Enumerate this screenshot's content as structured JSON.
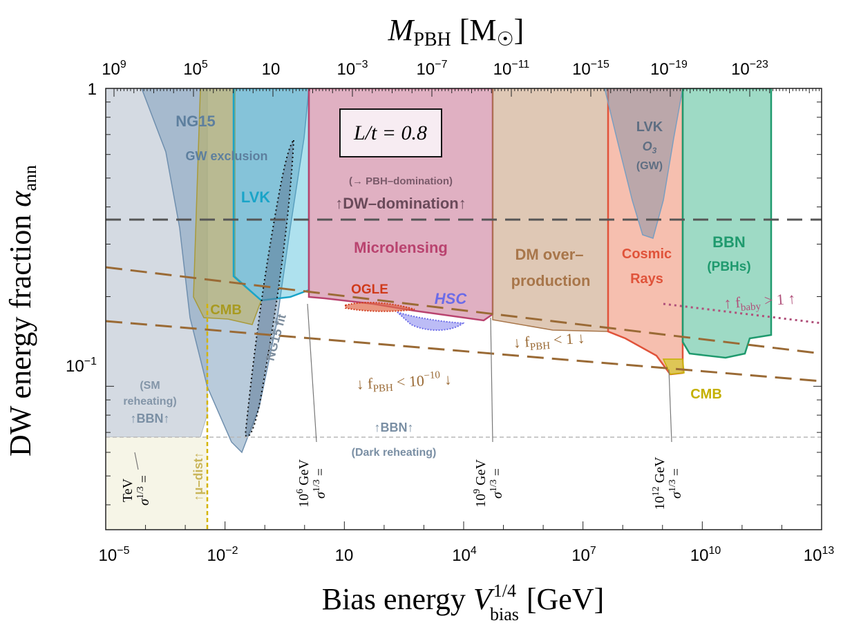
{
  "chart_data": {
    "type": "area",
    "title": "",
    "top_axis": {
      "label": "M_PBH [M_⊙]",
      "label_main": "M",
      "label_sub": "PBH",
      "label_unit": "[M",
      "label_unit_end": "]",
      "ticks": [
        {
          "base": "10",
          "exp": "9"
        },
        {
          "base": "10",
          "exp": "5"
        },
        {
          "base": "10",
          "exp": ""
        },
        {
          "base": "10",
          "exp": "−3"
        },
        {
          "base": "10",
          "exp": "−7"
        },
        {
          "base": "10",
          "exp": "−11"
        },
        {
          "base": "10",
          "exp": "−15"
        },
        {
          "base": "10",
          "exp": "−19"
        },
        {
          "base": "10",
          "exp": "−23"
        }
      ]
    },
    "xlabel": "Bias energy V_bias^{1/4} [GeV]",
    "xlabel_parts": {
      "main": "Bias energy ",
      "var": "V",
      "sub": "bias",
      "sup": "1/4",
      "unit": " [GeV]"
    },
    "ylabel": "DW energy fraction α_ann",
    "ylabel_parts": {
      "main": "DW energy fraction ",
      "var": "α",
      "sub": "ann"
    },
    "x_scale": "log",
    "y_scale": "log",
    "xlim": [
      1e-05,
      10000000000000.0
    ],
    "ylim": [
      0.033,
      1
    ],
    "x_ticks": [
      {
        "base": "10",
        "exp": "−5"
      },
      {
        "base": "10",
        "exp": "−2"
      },
      {
        "base": "10",
        "exp": ""
      },
      {
        "base": "10",
        "exp": "4"
      },
      {
        "base": "10",
        "exp": "7"
      },
      {
        "base": "10",
        "exp": "10"
      },
      {
        "base": "10",
        "exp": "13"
      }
    ],
    "y_ticks": [
      {
        "text": "1"
      },
      {
        "base": "10",
        "exp": "−1"
      }
    ],
    "colors": {
      "sm_reheating": "#8fa2b4",
      "mu_dist": "#e0e0b0",
      "ng15": "#6f95b6",
      "cmb": "#b2a23a",
      "lvk": "#1aa4c8",
      "microlensing": "#c0507a",
      "ogle": "#d03a1a",
      "hsc": "#6b6be8",
      "dm_overproduction": "#a8764a",
      "cosmic_rays": "#e0533a",
      "bbn": "#1f9a6e",
      "dw_domination_line": "#555555",
      "fpbh_lines": "#9a6a35",
      "fbaby_line": "#b0507a"
    },
    "regions": [
      {
        "name": "SM reheating BBN",
        "x_range": [
          1e-05,
          0.008
        ],
        "y_range": [
          0.057,
          1
        ]
      },
      {
        "name": "μ-dist",
        "x_range": [
          1e-05,
          0.006
        ],
        "y_range": [
          0.033,
          0.057
        ]
      },
      {
        "name": "NG15 GW exclusion",
        "x_range": [
          0.0002,
          3
        ]
      },
      {
        "name": "CMB",
        "x_range": [
          0.003,
          0.1
        ],
        "y_range": [
          0.12,
          0.2
        ]
      },
      {
        "name": "LVK",
        "x_range": [
          0.05,
          3
        ],
        "y_range": [
          0.17,
          1
        ]
      },
      {
        "name": "Microlensing",
        "x_range": [
          3,
          50000
        ],
        "y_range": [
          0.14,
          1
        ]
      },
      {
        "name": "OGLE",
        "x_range": [
          15,
          1000
        ]
      },
      {
        "name": "HSC",
        "x_range": [
          1000,
          50000
        ]
      },
      {
        "name": "DM over-production",
        "x_range": [
          50000,
          1000000000.0
        ],
        "y_range": [
          0.12,
          1
        ]
      },
      {
        "name": "Cosmic Rays",
        "x_range": [
          1000000000.0,
          80000000000.0
        ],
        "y_range": [
          0.095,
          1
        ]
      },
      {
        "name": "LVK O3 (GW)",
        "x_range": [
          200000000.0,
          60000000000.0
        ],
        "y_range": [
          0.3,
          1
        ]
      },
      {
        "name": "BBN (PBHs)",
        "x_range": [
          80000000000.0,
          800000000000.0
        ],
        "y_range": [
          0.1,
          1
        ]
      }
    ],
    "lines": [
      {
        "name": "DW-domination",
        "y": 0.35
      },
      {
        "name": "BBN (Dark reheating)",
        "y": 0.057
      },
      {
        "name": "f_PBH < 1",
        "from": [
          1e-05,
          0.3
        ],
        "to": [
          10000000000000.0,
          0.11
        ]
      },
      {
        "name": "f_PBH < 10^-10",
        "from": [
          1e-05,
          0.15
        ],
        "to": [
          10000000000000.0,
          0.087
        ]
      },
      {
        "name": "f_baby > 1",
        "from": [
          100000000.0,
          0.175
        ],
        "to": [
          10000000000000.0,
          0.14
        ]
      }
    ],
    "annotations": {
      "sm_reheating": "(SM\nreheating)",
      "bbn_left": "↑BBN↑",
      "mu_dist": "↑μ–dist↑",
      "ng15_title": "NG15",
      "ng15_sub": "GW exclusion",
      "ng15_fit": "NG15 fit",
      "cmb_left": "CMB",
      "lvk_left": "LVK",
      "box": "L/t = 0.8",
      "pbh_domination": "(→ PBH–domination)",
      "dw_domination": "↑DW–domination↑",
      "microlensing": "Microlensing",
      "ogle": "OGLE",
      "hsc": "HSC",
      "dm_line1": "DM over–",
      "dm_line2": "production",
      "cosmic_line1": "Cosmic",
      "cosmic_line2": "Rays",
      "lvk_right": "LVK",
      "lvk_o3": "O",
      "lvk_o3_sub": "3",
      "lvk_gw": "(GW)",
      "bbn_line1": "BBN",
      "bbn_line2": "(PBHs)",
      "fbaby": "↑ f",
      "fbaby_sub": "baby",
      "fbaby_rest": " > 1 ↑",
      "fpbh1": "↓ f",
      "fpbh1_sub": "PBH",
      "fpbh1_rest": " < 1 ↓",
      "fpbh2": "↓ f",
      "fpbh2_sub": "PBH",
      "fpbh2_rest": " < 10",
      "fpbh2_exp": "−10",
      "fpbh2_end": " ↓",
      "bbn_center": "↑BBN↑",
      "dark_reheating": "(Dark reheating)",
      "cmb_right": "CMB",
      "sigma_tev": {
        "line1": "σ",
        "sup": "1/3",
        "eq": " =",
        "line2": "TeV"
      },
      "sigma_1e6": {
        "line1": "σ",
        "sup": "1/3",
        "eq": " =",
        "line2": "10",
        "line2_exp": "6",
        "line2_unit": " GeV"
      },
      "sigma_1e9": {
        "line1": "σ",
        "sup": "1/3",
        "eq": " =",
        "line2": "10",
        "line2_exp": "9",
        "line2_unit": " GeV"
      },
      "sigma_1e12": {
        "line1": "σ",
        "sup": "1/3",
        "eq": " =",
        "line2": "10",
        "line2_exp": "12",
        "line2_unit": " GeV"
      }
    }
  }
}
